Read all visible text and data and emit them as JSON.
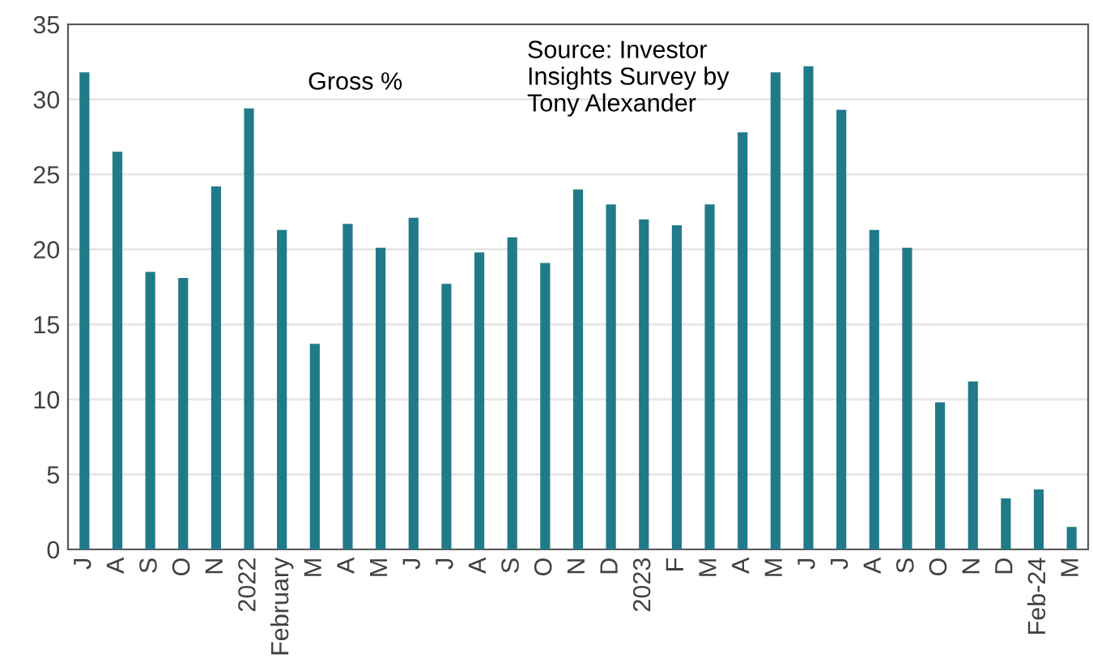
{
  "chart_data": {
    "type": "bar",
    "categories": [
      "J",
      "A",
      "S",
      "O",
      "N",
      "2022",
      "February",
      "M",
      "A",
      "M",
      "J",
      "J",
      "A",
      "S",
      "O",
      "N",
      "D",
      "2023",
      "F",
      "M",
      "A",
      "M",
      "J",
      "J",
      "A",
      "S",
      "O",
      "N",
      "D",
      "Feb-24",
      "M"
    ],
    "values": [
      31.8,
      26.5,
      18.5,
      18.1,
      24.2,
      29.4,
      21.3,
      13.7,
      21.7,
      20.1,
      22.1,
      17.7,
      19.8,
      20.8,
      19.1,
      24.0,
      23.0,
      22.0,
      21.6,
      23.0,
      27.8,
      31.8,
      32.2,
      29.3,
      21.3,
      20.1,
      9.8,
      11.2,
      3.4,
      4.0,
      1.5
    ],
    "color": "#217a8a",
    "ylim": [
      0,
      35
    ],
    "yticks": [
      0,
      5,
      10,
      15,
      20,
      25,
      30,
      35
    ],
    "grid": "y",
    "annotations": [
      "Gross %",
      "Source: Investor\nInsights Survey by\nTony Alexander"
    ]
  }
}
